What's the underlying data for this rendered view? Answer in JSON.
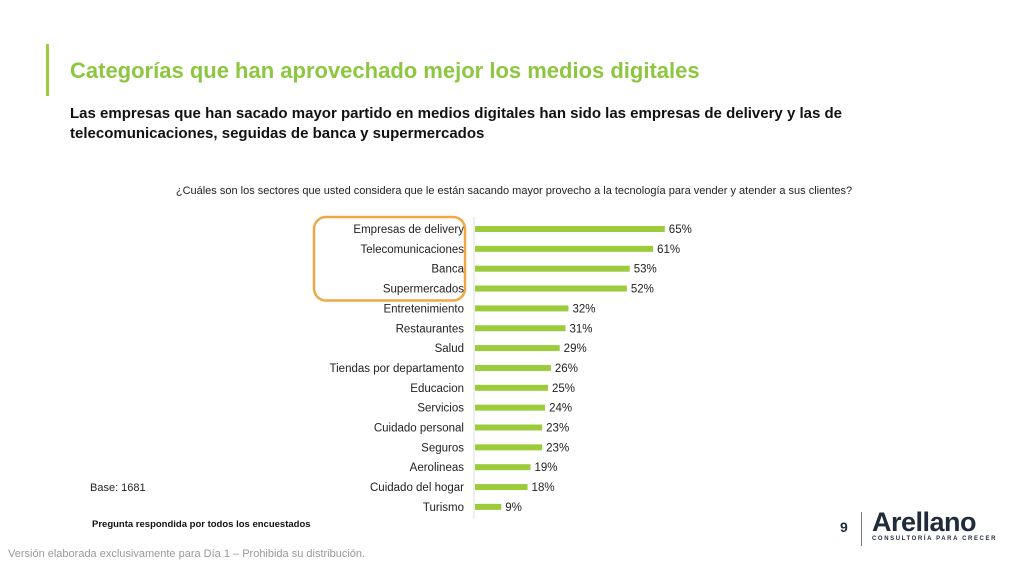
{
  "header": {
    "title": "Categorías que han aprovechado mejor los medios digitales",
    "subtitle": "Las empresas que han sacado mayor partido en medios digitales han sido las empresas de delivery y las de telecomunicaciones, seguidas de banca y supermercados"
  },
  "chart_data": {
    "type": "bar",
    "orientation": "horizontal",
    "title": "¿Cuáles son los sectores que usted considera que le están sacando mayor provecho a la tecnología para vender y atender a sus clientes?",
    "categories": [
      "Empresas de delivery",
      "Telecomunicaciones",
      "Banca",
      "Supermercados",
      "Entretenimiento",
      "Restaurantes",
      "Salud",
      "Tiendas por departamento",
      "Educacion",
      "Servicios",
      "Cuidado personal",
      "Seguros",
      "Aerolineas",
      "Cuidado del hogar",
      "Turismo"
    ],
    "values": [
      65,
      61,
      53,
      52,
      32,
      31,
      29,
      26,
      25,
      24,
      23,
      23,
      19,
      18,
      9
    ],
    "value_suffix": "%",
    "highlighted": [
      "Empresas de delivery",
      "Telecomunicaciones",
      "Banca",
      "Supermercados"
    ],
    "bar_color": "#9ccc3c",
    "highlight_color": "#f0a844",
    "grid": false
  },
  "base": "Base: 1681",
  "note": "Pregunta respondida por todos los encuestados",
  "footer": "Versión elaborada exclusivamente para Día 1 – Prohibida su distribución.",
  "page_number": "9",
  "logo": {
    "name": "Arellano",
    "tagline": "CONSULTORÍA PARA CRECER"
  }
}
